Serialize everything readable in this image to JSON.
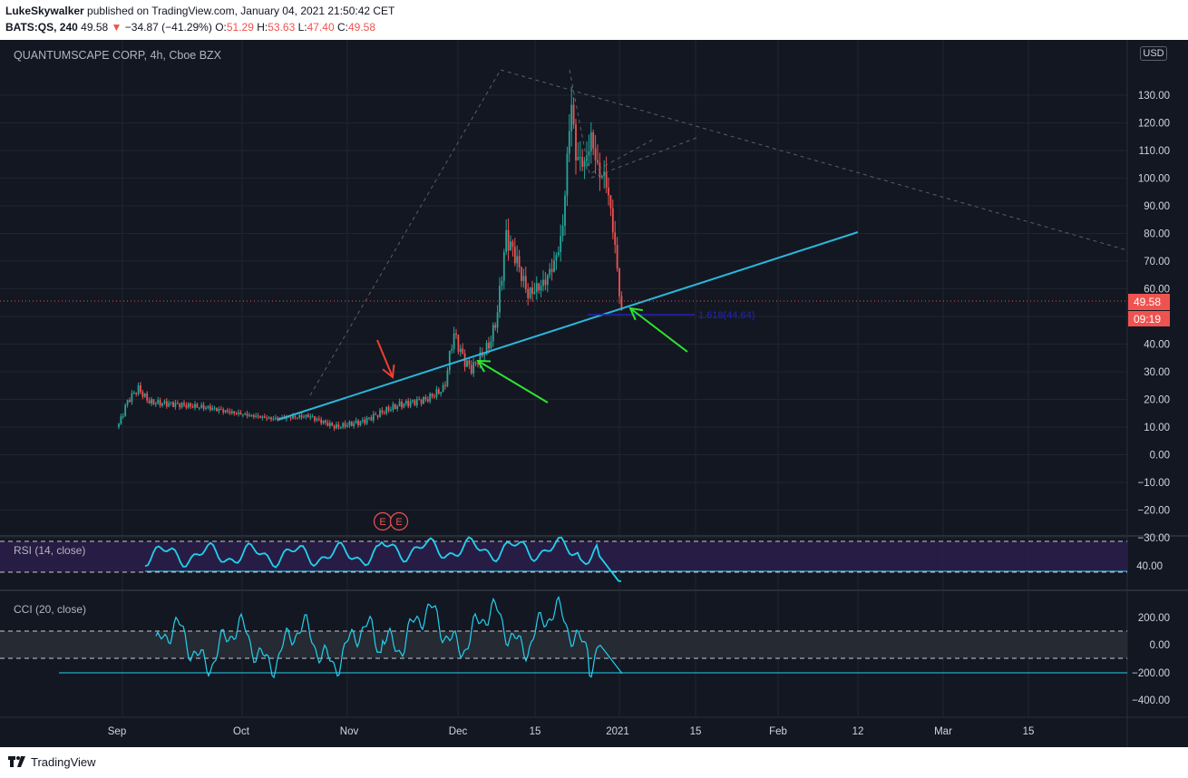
{
  "publish": {
    "author": "LukeSkywalker",
    "text": " published on TradingView.com, January 04, 2021 21:50:42 CET"
  },
  "ohlc": {
    "symbol": "BATS:QS, 240",
    "last": "49.58",
    "arrow": "▼",
    "change": "−34.87 (−41.29%)",
    "o_label": "O:",
    "o": "51.29",
    "h_label": "H:",
    "h": "53.63",
    "l_label": "L:",
    "l": "47.40",
    "c_label": "C:",
    "c": "49.58"
  },
  "chart": {
    "title": "QUANTUMSCAPE CORP, 4h, Cboe BZX",
    "currency": "USD",
    "price_label": "49.58",
    "countdown_label": "09:19",
    "fib_label": "1.618(44.64)",
    "earnings_markers": [
      "E",
      "E"
    ],
    "price_axis": [
      "130.00",
      "120.00",
      "110.00",
      "100.00",
      "90.00",
      "80.00",
      "70.00",
      "60.00",
      "40.00",
      "30.00",
      "20.00",
      "10.00",
      "0.00",
      "−10.00",
      "−20.00",
      "−30.00"
    ],
    "time_axis": [
      "Sep",
      "Oct",
      "Nov",
      "Dec",
      "15",
      "2021",
      "15",
      "Feb",
      "12",
      "Mar",
      "15"
    ],
    "colors": {
      "background": "#131722",
      "up": "#26a69a",
      "down": "#ef5350",
      "trendline": "#2bb7da",
      "arrow_green": "#2ee32e",
      "arrow_red": "#f23d2e",
      "fib": "#2424b8",
      "indicator": "#22d1ee"
    }
  },
  "rsi": {
    "label": "RSI (14, close)",
    "axis": [
      "40.00"
    ]
  },
  "cci": {
    "label": "CCI (20, close)",
    "axis": [
      "200.00",
      "0.00",
      "−200.00",
      "−400.00"
    ]
  },
  "footer": {
    "brand": "TradingView"
  }
}
